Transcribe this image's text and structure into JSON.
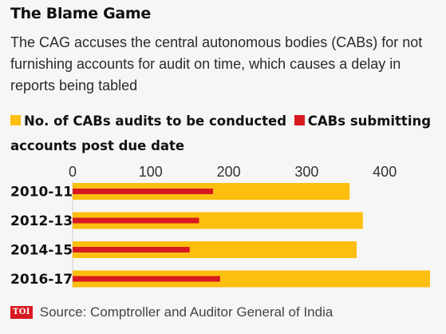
{
  "title": "The Blame Game",
  "subtitle": "The CAG accuses the central autonomous bodies (CABs) for not furnishing accounts for audit on time, which causes a delay in reports being tabled",
  "logo_text": "TOI",
  "source": "Source: Comptroller and Auditor General of India",
  "colors": {
    "audits": "#fcbf10",
    "late": "#d71920",
    "axis": "#bdbdbd"
  },
  "chart_data": {
    "type": "bar",
    "orientation": "horizontal",
    "categories": [
      "2010-11",
      "2012-13",
      "2014-15",
      "2016-17"
    ],
    "series": [
      {
        "name": "No. of CABs audits to be conducted",
        "values": [
          355,
          372,
          364,
          458
        ]
      },
      {
        "name": "CABs submitting accounts post due date",
        "values": [
          180,
          162,
          150,
          189
        ]
      }
    ],
    "xticks": [
      0,
      100,
      200,
      300,
      400
    ],
    "xlim": [
      0,
      458
    ],
    "legend_position": "top",
    "grid": false
  }
}
